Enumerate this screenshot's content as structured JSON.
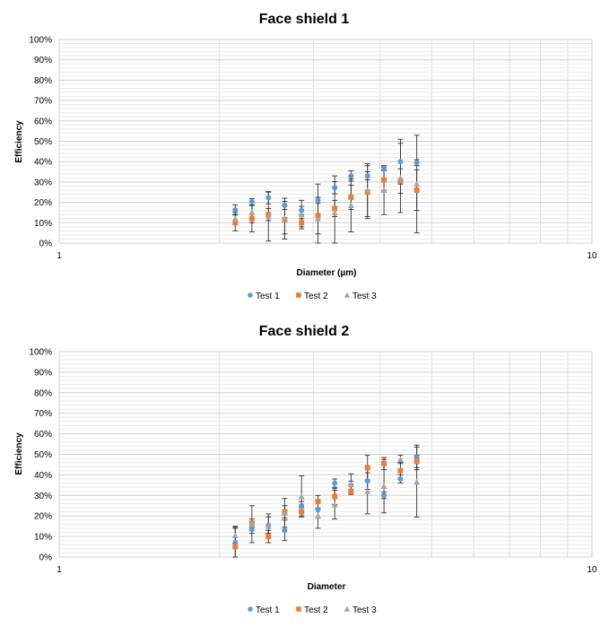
{
  "chart_data": [
    {
      "type": "scatter",
      "title": "Face shield 1",
      "xlabel": "Diameter (µm)",
      "ylabel": "Efficiency",
      "x_scale": "log",
      "xlim": [
        1,
        10
      ],
      "x_ticks": [
        "1",
        "10"
      ],
      "ylim": [
        0,
        1
      ],
      "y_ticks": [
        "0%",
        "10%",
        "20%",
        "30%",
        "40%",
        "50%",
        "60%",
        "70%",
        "80%",
        "90%",
        "100%"
      ],
      "grid": true,
      "legend_position": "bottom",
      "series": [
        {
          "name": "Test 1",
          "color": "#5B9BD5",
          "marker": "circle",
          "x": [
            2.14,
            2.3,
            2.47,
            2.65,
            2.85,
            3.06,
            3.29,
            3.53,
            3.79,
            4.07,
            4.37,
            4.69
          ],
          "y": [
            0.163,
            0.203,
            0.223,
            0.185,
            0.16,
            0.21,
            0.272,
            0.33,
            0.33,
            0.365,
            0.4,
            0.395
          ],
          "err": [
            0.025,
            0.015,
            0.03,
            0.02,
            0.02,
            0.015,
            0.03,
            0.025,
            0.02,
            0.01,
            0.11,
            0.015
          ]
        },
        {
          "name": "Test 2",
          "color": "#ED7D31",
          "marker": "square",
          "x": [
            2.14,
            2.3,
            2.47,
            2.65,
            2.85,
            3.06,
            3.29,
            3.53,
            3.79,
            4.07,
            4.37,
            4.69
          ],
          "y": [
            0.1,
            0.12,
            0.14,
            0.115,
            0.1,
            0.135,
            0.17,
            0.225,
            0.25,
            0.31,
            0.305,
            0.26
          ],
          "err": [
            0.04,
            0.065,
            0.03,
            0.07,
            0.02,
            0.09,
            0.04,
            0.06,
            0.13,
            0.05,
            0.06,
            0.1
          ]
        },
        {
          "name": "Test 3",
          "color": "#A5A5A5",
          "marker": "triangle",
          "x": [
            2.14,
            2.3,
            2.47,
            2.65,
            2.85,
            3.06,
            3.29,
            3.53,
            3.79,
            4.07,
            4.37,
            4.69
          ],
          "y": [
            0.12,
            0.15,
            0.13,
            0.12,
            0.14,
            0.12,
            0.15,
            0.185,
            0.26,
            0.26,
            0.32,
            0.29
          ],
          "err": [
            0.03,
            0.05,
            0.12,
            0.1,
            0.07,
            0.17,
            0.18,
            0.13,
            0.13,
            0.12,
            0.17,
            0.24
          ]
        }
      ]
    },
    {
      "type": "scatter",
      "title": "Face shield 2",
      "xlabel": "Diameter",
      "ylabel": "Efficiency",
      "x_scale": "log",
      "xlim": [
        1,
        10
      ],
      "x_ticks": [
        "1",
        "10"
      ],
      "ylim": [
        0,
        1
      ],
      "y_ticks": [
        "0%",
        "10%",
        "20%",
        "30%",
        "40%",
        "50%",
        "60%",
        "70%",
        "80%",
        "90%",
        "100%"
      ],
      "grid": true,
      "legend_position": "bottom",
      "series": [
        {
          "name": "Test 1",
          "color": "#5B9BD5",
          "marker": "circle",
          "x": [
            2.14,
            2.3,
            2.47,
            2.65,
            2.85,
            3.06,
            3.29,
            3.53,
            3.79,
            4.07,
            4.37,
            4.69
          ],
          "y": [
            0.07,
            0.135,
            0.155,
            0.13,
            0.25,
            0.23,
            0.36,
            0.35,
            0.37,
            0.3,
            0.38,
            0.485
          ],
          "err": [
            0.07,
            0.02,
            0.04,
            0.05,
            0.02,
            0.04,
            0.02,
            0.02,
            0.04,
            0.015,
            0.02,
            0.06
          ]
        },
        {
          "name": "Test 2",
          "color": "#ED7D31",
          "marker": "square",
          "x": [
            2.14,
            2.3,
            2.47,
            2.65,
            2.85,
            3.06,
            3.29,
            3.53,
            3.79,
            4.07,
            4.37,
            4.69
          ],
          "y": [
            0.05,
            0.165,
            0.1,
            0.22,
            0.22,
            0.27,
            0.295,
            0.32,
            0.435,
            0.455,
            0.42,
            0.465
          ],
          "err": [
            0.1,
            0.02,
            0.03,
            0.03,
            0.02,
            0.03,
            0.04,
            0.01,
            0.06,
            0.03,
            0.04,
            0.03
          ]
        },
        {
          "name": "Test 3",
          "color": "#A5A5A5",
          "marker": "triangle",
          "x": [
            2.14,
            2.3,
            2.47,
            2.65,
            2.85,
            3.06,
            3.29,
            3.53,
            3.79,
            4.07,
            4.37,
            4.69
          ],
          "y": [
            0.105,
            0.16,
            0.15,
            0.215,
            0.295,
            0.2,
            0.255,
            0.355,
            0.32,
            0.345,
            0.475,
            0.365
          ],
          "err": [
            0.04,
            0.09,
            0.06,
            0.07,
            0.1,
            0.06,
            0.07,
            0.05,
            0.11,
            0.13,
            0.02,
            0.17
          ]
        }
      ]
    }
  ]
}
